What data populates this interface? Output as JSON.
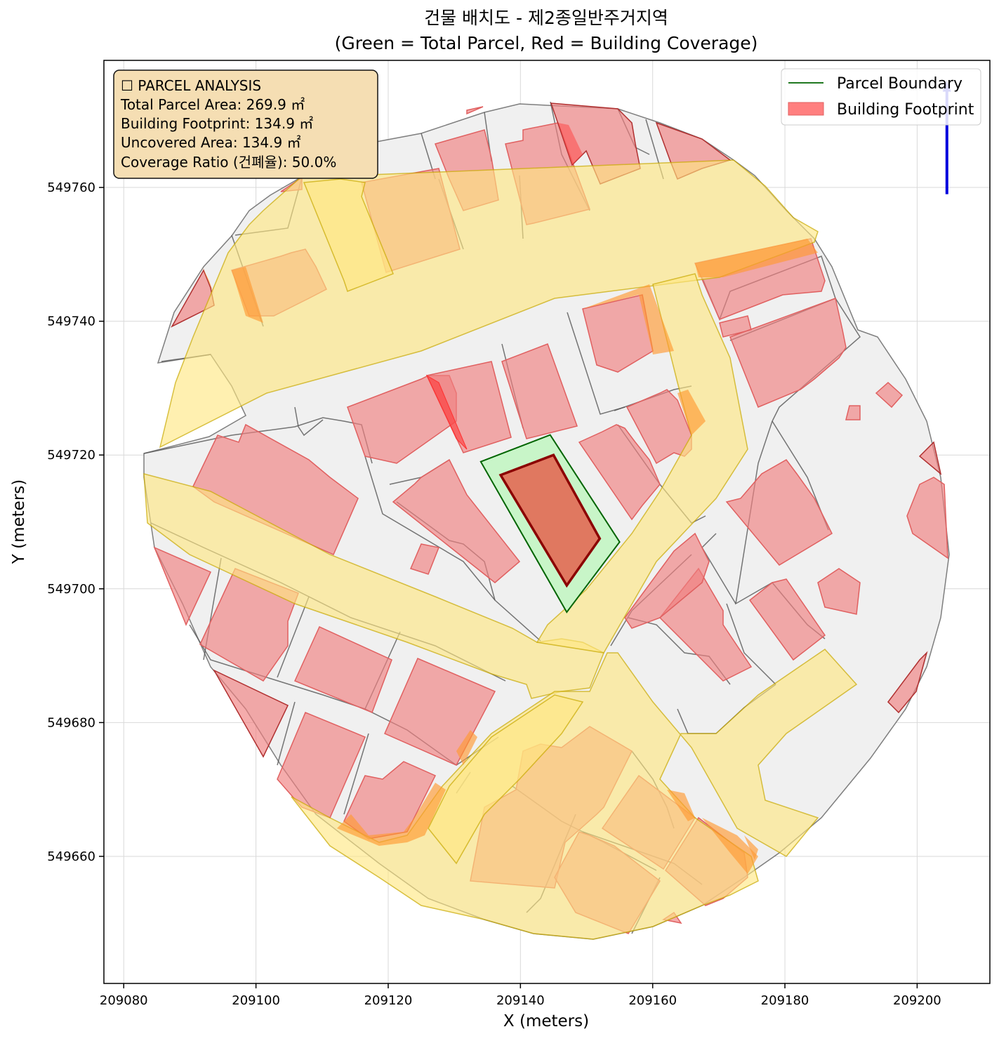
{
  "title": {
    "line1": "건물 배치도 - 제2종일반주거지역",
    "line2": "(Green = Total Parcel, Red = Building Coverage)"
  },
  "axes": {
    "xlabel": "X (meters)",
    "ylabel": "Y (meters)",
    "xlim": [
      209077,
      209211
    ],
    "ylim": [
      549641,
      549779
    ],
    "xticks": [
      209080,
      209100,
      209120,
      209140,
      209160,
      209180,
      209200
    ],
    "yticks": [
      549660,
      549680,
      549700,
      549720,
      549740,
      549760
    ],
    "grid": true
  },
  "info_box": {
    "heading": "☐ PARCEL ANALYSIS",
    "total_parcel_area": "Total Parcel Area: 269.9 ㎡",
    "building_footprint": "Building Footprint: 134.9 ㎡",
    "uncovered_area": "Uncovered Area: 134.9 ㎡",
    "coverage_ratio": "Coverage Ratio (건폐율): 50.0%"
  },
  "legend": {
    "placement": "top-right",
    "items": [
      {
        "label": "Parcel Boundary",
        "color": "#006400"
      },
      {
        "label": "Building Footprint",
        "color": "#ff7f7f"
      }
    ]
  },
  "colors": {
    "parcel_fill": "#c8f5c8",
    "parcel_edge": "#006400",
    "footprint_fill": "#e07860",
    "footprint_edge": "#8b0000",
    "north_arrow": "#0000dd"
  },
  "chart_data": {
    "type": "map",
    "target_parcel": [
      [
        209134,
        549719
      ],
      [
        209144.5,
        549723
      ],
      [
        209155,
        549707
      ],
      [
        209147,
        549696.5
      ]
    ],
    "target_footprint": [
      [
        209137,
        549717
      ],
      [
        209145,
        549720
      ],
      [
        209152,
        549707.5
      ],
      [
        209147,
        549700.5
      ]
    ],
    "north_arrow": {
      "x": 209204.5,
      "y_from": 549759,
      "y_to": 549776
    }
  }
}
